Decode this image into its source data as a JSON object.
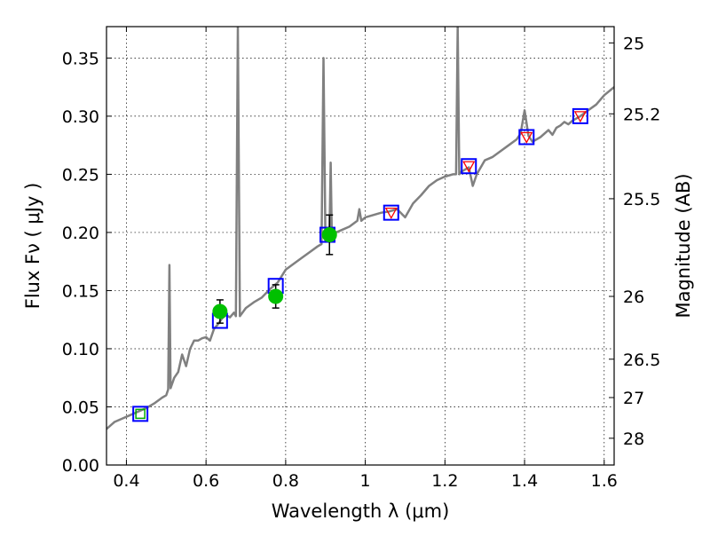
{
  "chart_data": {
    "type": "scatter",
    "xlabel": "Wavelength  λ (μm)",
    "ylabel": "Flux  Fν  ( μJy )",
    "ylabel2": "Magnitude (AB)",
    "xlim": [
      0.35,
      1.625
    ],
    "ylim": [
      0.0,
      0.377
    ],
    "grid": true,
    "x_ticks": [
      0.4,
      0.6,
      0.8,
      1.0,
      1.2,
      1.4,
      1.6
    ],
    "x_tick_labels": [
      "0.4",
      "0.6",
      "0.8",
      "1",
      "1.2",
      "1.4",
      "1.6"
    ],
    "y_ticks": [
      0.0,
      0.05,
      0.1,
      0.15,
      0.2,
      0.25,
      0.3,
      0.35
    ],
    "y_tick_labels": [
      "0.00",
      "0.05",
      "0.10",
      "0.15",
      "0.20",
      "0.25",
      "0.30",
      "0.35"
    ],
    "y2_ticks": [
      {
        "label": "25",
        "flux": 0.363
      },
      {
        "label": "25.2",
        "flux": 0.302
      },
      {
        "label": "25.5",
        "flux": 0.229
      },
      {
        "label": "26",
        "flux": 0.145
      },
      {
        "label": "26.5",
        "flux": 0.091
      },
      {
        "label": "27",
        "flux": 0.058
      },
      {
        "label": "28",
        "flux": 0.023
      }
    ],
    "spectrum": {
      "color": "#808080",
      "points": [
        [
          0.35,
          0.031
        ],
        [
          0.37,
          0.037
        ],
        [
          0.39,
          0.04
        ],
        [
          0.41,
          0.043
        ],
        [
          0.43,
          0.046
        ],
        [
          0.45,
          0.049
        ],
        [
          0.47,
          0.053
        ],
        [
          0.49,
          0.058
        ],
        [
          0.5,
          0.06
        ],
        [
          0.505,
          0.065
        ],
        [
          0.508,
          0.172
        ],
        [
          0.511,
          0.066
        ],
        [
          0.52,
          0.075
        ],
        [
          0.53,
          0.08
        ],
        [
          0.54,
          0.095
        ],
        [
          0.55,
          0.085
        ],
        [
          0.56,
          0.1
        ],
        [
          0.57,
          0.107
        ],
        [
          0.58,
          0.107
        ],
        [
          0.59,
          0.109
        ],
        [
          0.6,
          0.11
        ],
        [
          0.61,
          0.107
        ],
        [
          0.62,
          0.117
        ],
        [
          0.63,
          0.121
        ],
        [
          0.64,
          0.126
        ],
        [
          0.65,
          0.129
        ],
        [
          0.66,
          0.127
        ],
        [
          0.67,
          0.131
        ],
        [
          0.675,
          0.128
        ],
        [
          0.68,
          0.377
        ],
        [
          0.685,
          0.128
        ],
        [
          0.7,
          0.135
        ],
        [
          0.72,
          0.14
        ],
        [
          0.74,
          0.144
        ],
        [
          0.76,
          0.151
        ],
        [
          0.78,
          0.157
        ],
        [
          0.8,
          0.168
        ],
        [
          0.82,
          0.173
        ],
        [
          0.84,
          0.178
        ],
        [
          0.86,
          0.183
        ],
        [
          0.88,
          0.188
        ],
        [
          0.89,
          0.19
        ],
        [
          0.895,
          0.35
        ],
        [
          0.9,
          0.192
        ],
        [
          0.91,
          0.195
        ],
        [
          0.913,
          0.26
        ],
        [
          0.916,
          0.197
        ],
        [
          0.92,
          0.199
        ],
        [
          0.94,
          0.202
        ],
        [
          0.96,
          0.205
        ],
        [
          0.98,
          0.21
        ],
        [
          0.985,
          0.22
        ],
        [
          0.99,
          0.21
        ],
        [
          1.0,
          0.213
        ],
        [
          1.02,
          0.215
        ],
        [
          1.04,
          0.217
        ],
        [
          1.06,
          0.218
        ],
        [
          1.08,
          0.22
        ],
        [
          1.1,
          0.213
        ],
        [
          1.12,
          0.225
        ],
        [
          1.14,
          0.232
        ],
        [
          1.16,
          0.24
        ],
        [
          1.18,
          0.245
        ],
        [
          1.2,
          0.248
        ],
        [
          1.22,
          0.25
        ],
        [
          1.228,
          0.25
        ],
        [
          1.232,
          0.377
        ],
        [
          1.236,
          0.25
        ],
        [
          1.24,
          0.252
        ],
        [
          1.26,
          0.256
        ],
        [
          1.27,
          0.24
        ],
        [
          1.28,
          0.25
        ],
        [
          1.3,
          0.262
        ],
        [
          1.32,
          0.265
        ],
        [
          1.34,
          0.27
        ],
        [
          1.36,
          0.275
        ],
        [
          1.38,
          0.28
        ],
        [
          1.39,
          0.285
        ],
        [
          1.4,
          0.305
        ],
        [
          1.41,
          0.283
        ],
        [
          1.42,
          0.278
        ],
        [
          1.44,
          0.282
        ],
        [
          1.46,
          0.288
        ],
        [
          1.47,
          0.284
        ],
        [
          1.48,
          0.29
        ],
        [
          1.49,
          0.292
        ],
        [
          1.5,
          0.295
        ],
        [
          1.51,
          0.293
        ],
        [
          1.52,
          0.296
        ],
        [
          1.54,
          0.3
        ],
        [
          1.56,
          0.305
        ],
        [
          1.58,
          0.31
        ],
        [
          1.6,
          0.318
        ],
        [
          1.625,
          0.325
        ]
      ]
    },
    "model_points": {
      "marker": "open-square",
      "color": "#0000ff",
      "points": [
        [
          0.435,
          0.044
        ],
        [
          0.635,
          0.124
        ],
        [
          0.775,
          0.154
        ],
        [
          0.905,
          0.198
        ],
        [
          1.065,
          0.217
        ],
        [
          1.26,
          0.257
        ],
        [
          1.405,
          0.282
        ],
        [
          1.54,
          0.3
        ]
      ]
    },
    "upper_limits": {
      "marker": "triangle-down",
      "color": "#ff0000",
      "points": [
        [
          1.065,
          0.217
        ],
        [
          1.26,
          0.257
        ],
        [
          1.405,
          0.282
        ],
        [
          1.54,
          0.3
        ]
      ]
    },
    "green_markers": {
      "marker": "open-square",
      "color": "#00aa00",
      "points": [
        [
          0.435,
          0.044
        ]
      ]
    },
    "observations": {
      "marker": "filled-circle",
      "color": "#00c000",
      "points": [
        {
          "x": 0.635,
          "y": 0.132,
          "err": 0.01
        },
        {
          "x": 0.775,
          "y": 0.145,
          "err": 0.01
        },
        {
          "x": 0.91,
          "y": 0.198,
          "err": 0.017
        }
      ]
    }
  }
}
